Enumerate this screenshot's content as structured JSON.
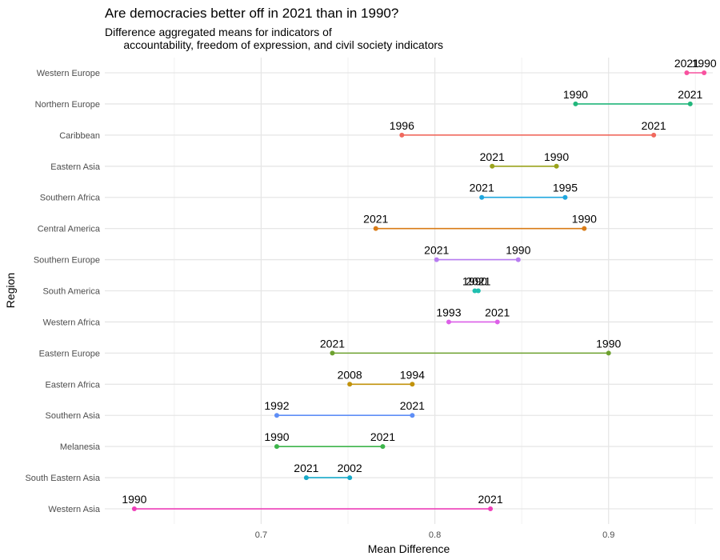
{
  "chart_data": {
    "type": "dumbbell",
    "title": "Are democracies better off in 2021 than in 1990?",
    "subtitle": "Difference aggregated means for indicators of\n      accountability, freedom of expression, and civil society indicators",
    "xlabel": "Mean Difference",
    "ylabel": "Region",
    "xlim": [
      0.61,
      0.96
    ],
    "x_ticks": [
      0.7,
      0.8,
      0.9
    ],
    "x_tick_labels": [
      "0.7",
      "0.8",
      "0.9"
    ],
    "grid": true,
    "legend": "none",
    "rows": [
      {
        "region": "Western Europe",
        "color": "#F8529F",
        "points": [
          {
            "label": "2021",
            "x": 0.945
          },
          {
            "label": "1990",
            "x": 0.955
          }
        ]
      },
      {
        "region": "Northern Europe",
        "color": "#22B77C",
        "points": [
          {
            "label": "1990",
            "x": 0.881
          },
          {
            "label": "2021",
            "x": 0.947
          }
        ]
      },
      {
        "region": "Caribbean",
        "color": "#F0695E",
        "points": [
          {
            "label": "1996",
            "x": 0.781
          },
          {
            "label": "2021",
            "x": 0.926
          }
        ]
      },
      {
        "region": "Eastern Asia",
        "color": "#9AA31C",
        "points": [
          {
            "label": "2021",
            "x": 0.833
          },
          {
            "label": "1990",
            "x": 0.87
          }
        ]
      },
      {
        "region": "Southern Africa",
        "color": "#1FA7DF",
        "points": [
          {
            "label": "2021",
            "x": 0.827
          },
          {
            "label": "1995",
            "x": 0.875
          }
        ]
      },
      {
        "region": "Central America",
        "color": "#D97B16",
        "points": [
          {
            "label": "2021",
            "x": 0.766
          },
          {
            "label": "1990",
            "x": 0.886
          }
        ]
      },
      {
        "region": "Southern Europe",
        "color": "#B77CF0",
        "points": [
          {
            "label": "2021",
            "x": 0.801
          },
          {
            "label": "1990",
            "x": 0.848
          }
        ]
      },
      {
        "region": "South America",
        "color": "#1FBFAF",
        "points": [
          {
            "label": "1990",
            "x": 0.823
          },
          {
            "label": "2021",
            "x": 0.825
          }
        ]
      },
      {
        "region": "Western Africa",
        "color": "#DD5FE8",
        "points": [
          {
            "label": "1993",
            "x": 0.808
          },
          {
            "label": "2021",
            "x": 0.836
          }
        ]
      },
      {
        "region": "Eastern Europe",
        "color": "#6DA12E",
        "points": [
          {
            "label": "2021",
            "x": 0.741
          },
          {
            "label": "1990",
            "x": 0.9
          }
        ]
      },
      {
        "region": "Eastern Africa",
        "color": "#C1920B",
        "points": [
          {
            "label": "2008",
            "x": 0.751
          },
          {
            "label": "1994",
            "x": 0.787
          }
        ]
      },
      {
        "region": "Southern Asia",
        "color": "#5E8EF6",
        "points": [
          {
            "label": "1992",
            "x": 0.709
          },
          {
            "label": "2021",
            "x": 0.787
          }
        ]
      },
      {
        "region": "Melanesia",
        "color": "#3DB54B",
        "points": [
          {
            "label": "1990",
            "x": 0.709
          },
          {
            "label": "2021",
            "x": 0.77
          }
        ]
      },
      {
        "region": "South Eastern Asia",
        "color": "#17A9C8",
        "points": [
          {
            "label": "2021",
            "x": 0.726
          },
          {
            "label": "2002",
            "x": 0.751
          }
        ]
      },
      {
        "region": "Western Asia",
        "color": "#EE3FB9",
        "points": [
          {
            "label": "1990",
            "x": 0.627
          },
          {
            "label": "2021",
            "x": 0.832
          }
        ]
      }
    ]
  }
}
